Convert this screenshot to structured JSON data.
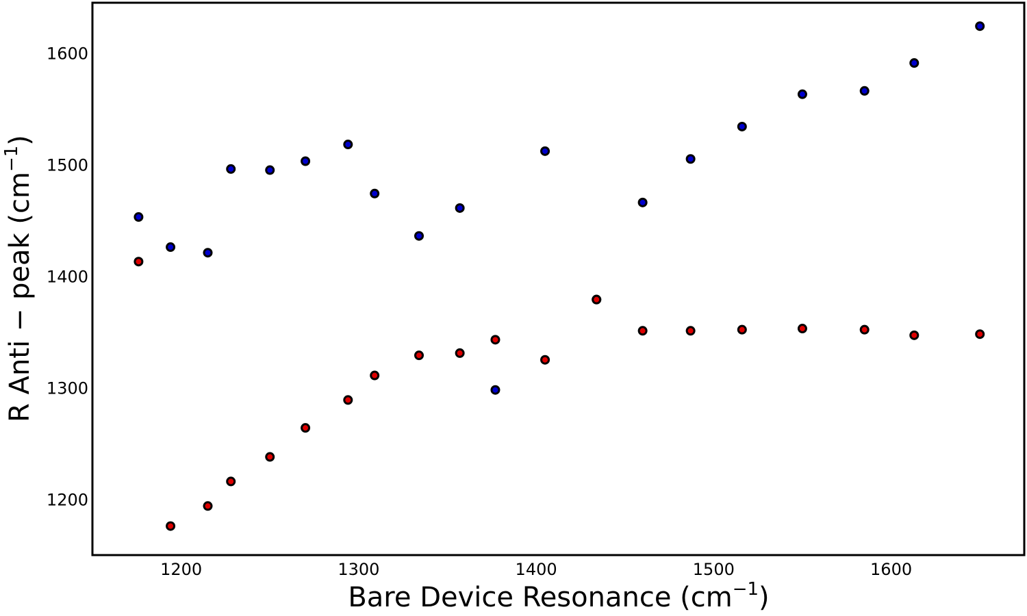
{
  "chart_data": {
    "type": "scatter",
    "title": "",
    "xlabel": "Bare Device Resonance (cm",
    "ylabel": "R Anti − peak (cm",
    "unit_exponent": "−1",
    "xlim": [
      1150,
      1675
    ],
    "ylim": [
      1150,
      1645
    ],
    "x_ticks": [
      1200,
      1300,
      1400,
      1500,
      1600
    ],
    "y_ticks": [
      1200,
      1300,
      1400,
      1500,
      1600
    ],
    "x_tick_labels": [
      "1200",
      "1300",
      "1400",
      "1500",
      "1600"
    ],
    "y_tick_labels": [
      "1200",
      "1300",
      "1400",
      "1500",
      "1600"
    ],
    "grid": false,
    "legend": "none",
    "series": [
      {
        "color": "#0000cc",
        "marker_edge": "#000000",
        "points": [
          [
            1176,
            1453
          ],
          [
            1194,
            1426
          ],
          [
            1215,
            1421
          ],
          [
            1228,
            1496
          ],
          [
            1250,
            1495
          ],
          [
            1270,
            1503
          ],
          [
            1294,
            1518
          ],
          [
            1309,
            1474
          ],
          [
            1334,
            1436
          ],
          [
            1357,
            1461
          ],
          [
            1377,
            1298
          ],
          [
            1405,
            1512
          ],
          [
            1434,
            1379
          ],
          [
            1460,
            1466
          ],
          [
            1487,
            1505
          ],
          [
            1516,
            1534
          ],
          [
            1550,
            1563
          ],
          [
            1585,
            1566
          ],
          [
            1613,
            1591
          ],
          [
            1650,
            1624
          ]
        ]
      },
      {
        "color": "#dd0000",
        "marker_edge": "#000000",
        "points": [
          [
            1176,
            1413
          ],
          [
            1194,
            1176
          ],
          [
            1215,
            1194
          ],
          [
            1228,
            1216
          ],
          [
            1250,
            1238
          ],
          [
            1270,
            1264
          ],
          [
            1294,
            1289
          ],
          [
            1309,
            1311
          ],
          [
            1334,
            1329
          ],
          [
            1357,
            1331
          ],
          [
            1377,
            1343
          ],
          [
            1405,
            1325
          ],
          [
            1434,
            1379
          ],
          [
            1460,
            1351
          ],
          [
            1487,
            1351
          ],
          [
            1516,
            1352
          ],
          [
            1550,
            1353
          ],
          [
            1585,
            1352
          ],
          [
            1613,
            1347
          ],
          [
            1650,
            1348
          ]
        ]
      }
    ]
  }
}
